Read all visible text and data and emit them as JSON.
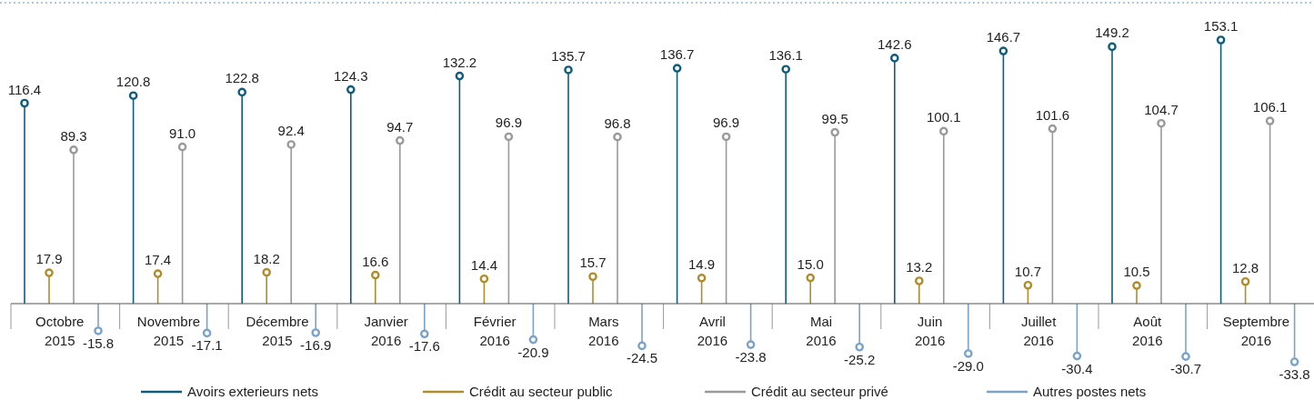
{
  "chart_data": {
    "type": "lollipop",
    "categories": [
      "Octobre 2015",
      "Novembre 2015",
      "Décembre 2015",
      "Janvier 2016",
      "Février 2016",
      "Mars 2016",
      "Avril 2016",
      "Mai 2016",
      "Juin 2016",
      "Juillet 2016",
      "Août 2016",
      "Septembre 2016"
    ],
    "series": [
      {
        "name": "Avoirs exterieurs nets",
        "color": "#0e5d7e",
        "values": [
          116.4,
          120.8,
          122.8,
          124.3,
          132.2,
          135.7,
          136.7,
          136.1,
          142.6,
          146.7,
          149.2,
          153.1
        ],
        "value_labels": [
          "116.4",
          "120.8",
          "122.8",
          "124.3",
          "132.2",
          "135.7",
          "136.7",
          "136.1",
          "142.6",
          "146.7",
          "149.2",
          "153.1"
        ]
      },
      {
        "name": "Crédit au secteur public",
        "color": "#b08d2a",
        "values": [
          17.9,
          17.4,
          18.2,
          16.6,
          14.4,
          15.7,
          14.9,
          15.0,
          13.2,
          10.7,
          10.5,
          12.8
        ],
        "value_labels": [
          "17.9",
          "17.4",
          "18.2",
          "16.6",
          "14.4",
          "15.7",
          "14.9",
          "15.0",
          "13.2",
          "10.7",
          "10.5",
          "12.8"
        ]
      },
      {
        "name": "Crédit au secteur privé",
        "color": "#9a9a9a",
        "values": [
          89.3,
          91.0,
          92.4,
          94.7,
          96.9,
          96.8,
          96.9,
          99.5,
          100.1,
          101.6,
          104.7,
          106.1
        ],
        "value_labels": [
          "89.3",
          "91.0",
          "92.4",
          "94.7",
          "96.9",
          "96.8",
          "96.9",
          "99.5",
          "100.1",
          "101.6",
          "104.7",
          "106.1"
        ]
      },
      {
        "name": "Autres postes nets",
        "color": "#7ba3c8",
        "values": [
          -15.8,
          -17.1,
          -16.9,
          -17.6,
          -20.9,
          -24.5,
          -23.8,
          -25.2,
          -29.0,
          -30.4,
          -30.7,
          -33.8
        ],
        "value_labels": [
          "-15.8",
          "-17.1",
          "-16.9",
          "-17.6",
          "-20.9",
          "-24.5",
          "-23.8",
          "-25.2",
          "-29.0",
          "-30.4",
          "-30.7",
          "-33.8"
        ]
      }
    ],
    "marker": "circle",
    "legend": "bottom"
  }
}
